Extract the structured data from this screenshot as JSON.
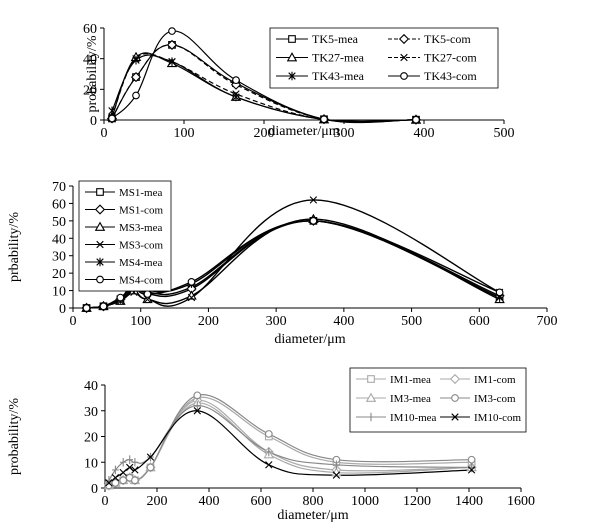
{
  "chart_data": [
    {
      "type": "line",
      "xlabel": "diameter/μm",
      "ylabel": "probability/%",
      "xlim": [
        0,
        500
      ],
      "ylim": [
        0,
        60
      ],
      "xticks": [
        "0",
        "100",
        "200",
        "300",
        "400",
        "500"
      ],
      "yticks": [
        "0",
        "20",
        "40",
        "60"
      ],
      "legend_position": "top-right",
      "legend_columns": 2,
      "series": [
        {
          "name": "TK5-mea",
          "marker": "square",
          "style": "solid",
          "color": "#000000",
          "x": [
            10,
            40,
            85,
            165,
            275,
            390
          ],
          "y": [
            1,
            28,
            49,
            24,
            0.5,
            0.2
          ]
        },
        {
          "name": "TK5-com",
          "marker": "diamond",
          "style": "dashed",
          "color": "#000000",
          "x": [
            10,
            40,
            85,
            165,
            275,
            390
          ],
          "y": [
            1,
            28,
            49,
            23,
            0.5,
            0.2
          ]
        },
        {
          "name": "TK27-mea",
          "marker": "triangle",
          "style": "solid",
          "color": "#000000",
          "x": [
            10,
            40,
            85,
            165,
            275,
            390
          ],
          "y": [
            2,
            41,
            37,
            15,
            0.3,
            0.1
          ]
        },
        {
          "name": "TK27-com",
          "marker": "x",
          "style": "dashed",
          "color": "#000000",
          "x": [
            10,
            40,
            85,
            165,
            275,
            390
          ],
          "y": [
            2,
            40,
            38,
            17,
            0.3,
            0.1
          ]
        },
        {
          "name": "TK43-mea",
          "marker": "asterisk",
          "style": "solid",
          "color": "#000000",
          "x": [
            10,
            40,
            85,
            165,
            275,
            390
          ],
          "y": [
            6,
            39,
            38,
            15,
            0.4,
            0.1
          ]
        },
        {
          "name": "TK43-com",
          "marker": "circle",
          "style": "solid",
          "color": "#000000",
          "x": [
            10,
            40,
            85,
            165,
            275,
            390
          ],
          "y": [
            1,
            16,
            58,
            26,
            0.5,
            0.2
          ]
        }
      ]
    },
    {
      "type": "line",
      "xlabel": "diameter/μm",
      "ylabel": "prbability/%",
      "xlim": [
        0,
        700
      ],
      "ylim": [
        0,
        70
      ],
      "xticks": [
        "0",
        "100",
        "200",
        "300",
        "400",
        "500",
        "600",
        "700"
      ],
      "yticks": [
        "0",
        "10",
        "20",
        "30",
        "40",
        "50",
        "60",
        "70"
      ],
      "legend_position": "top-left",
      "legend_columns": 1,
      "series": [
        {
          "name": "MS1-mea",
          "marker": "square",
          "style": "solid",
          "color": "#000000",
          "x": [
            20,
            45,
            70,
            90,
            110,
            175,
            355,
            630
          ],
          "y": [
            0,
            1,
            5,
            12,
            9,
            12,
            50,
            6
          ]
        },
        {
          "name": "MS1-com",
          "marker": "diamond",
          "style": "solid",
          "color": "#000000",
          "x": [
            20,
            45,
            70,
            90,
            110,
            175,
            355,
            630
          ],
          "y": [
            0,
            1,
            5,
            11,
            8,
            11,
            50,
            7
          ]
        },
        {
          "name": "MS3-mea",
          "marker": "triangle",
          "style": "solid",
          "color": "#000000",
          "x": [
            20,
            45,
            70,
            90,
            110,
            175,
            355,
            630
          ],
          "y": [
            0,
            1,
            4,
            10,
            5,
            7,
            51,
            5
          ]
        },
        {
          "name": "MS3-com",
          "marker": "x",
          "style": "solid",
          "color": "#000000",
          "x": [
            20,
            45,
            70,
            90,
            110,
            175,
            355,
            630
          ],
          "y": [
            0,
            1,
            4,
            9,
            5,
            6,
            62,
            9
          ]
        },
        {
          "name": "MS4-mea",
          "marker": "asterisk",
          "style": "solid",
          "color": "#000000",
          "x": [
            20,
            45,
            70,
            90,
            110,
            175,
            355,
            630
          ],
          "y": [
            0,
            1,
            5,
            15,
            10,
            14,
            50,
            6
          ]
        },
        {
          "name": "MS4-com",
          "marker": "circle",
          "style": "solid",
          "color": "#000000",
          "x": [
            20,
            45,
            70,
            90,
            110,
            175,
            355,
            630
          ],
          "y": [
            0,
            1,
            6,
            12,
            8,
            15,
            50,
            9
          ]
        }
      ]
    },
    {
      "type": "line",
      "xlabel": "diameter/μm",
      "ylabel": "probability/%",
      "xlim": [
        0,
        1600
      ],
      "ylim": [
        0,
        40
      ],
      "xticks": [
        "0",
        "200",
        "400",
        "600",
        "800",
        "1000",
        "1200",
        "1400",
        "1600"
      ],
      "yticks": [
        "0",
        "10",
        "20",
        "30",
        "40"
      ],
      "legend_position": "top-right",
      "legend_columns": 2,
      "series": [
        {
          "name": "IM1-mea",
          "marker": "square",
          "style": "solid",
          "color": "#aaaaaa",
          "x": [
            15,
            40,
            70,
            95,
            115,
            175,
            355,
            630,
            890,
            1410
          ],
          "y": [
            1,
            2,
            3,
            4,
            3,
            8,
            35,
            20,
            10,
            10
          ]
        },
        {
          "name": "IM1-com",
          "marker": "diamond",
          "style": "solid",
          "color": "#aaaaaa",
          "x": [
            15,
            40,
            70,
            95,
            115,
            175,
            355,
            630,
            890,
            1410
          ],
          "y": [
            1,
            2,
            3,
            4,
            3,
            8,
            34,
            14,
            7,
            8
          ]
        },
        {
          "name": "IM3-mea",
          "marker": "triangle",
          "style": "solid",
          "color": "#aaaaaa",
          "x": [
            15,
            40,
            70,
            95,
            115,
            175,
            355,
            630,
            890,
            1410
          ],
          "y": [
            1,
            2,
            3,
            4,
            3,
            8,
            33,
            13,
            6,
            8
          ]
        },
        {
          "name": "IM3-com",
          "marker": "circle",
          "style": "solid",
          "color": "#888888",
          "x": [
            15,
            40,
            70,
            95,
            115,
            175,
            355,
            630,
            890,
            1410
          ],
          "y": [
            1,
            2,
            3,
            4,
            3,
            8,
            36,
            21,
            11,
            11
          ]
        },
        {
          "name": "IM10-mea",
          "marker": "plus",
          "style": "solid",
          "color": "#888888",
          "x": [
            15,
            40,
            70,
            95,
            115,
            175,
            355,
            630,
            890,
            1410
          ],
          "y": [
            3,
            7,
            10,
            11,
            10,
            12,
            32,
            14,
            9,
            8
          ]
        },
        {
          "name": "IM10-com",
          "marker": "x",
          "style": "solid",
          "color": "#000000",
          "x": [
            15,
            40,
            70,
            95,
            115,
            175,
            355,
            630,
            890,
            1410
          ],
          "y": [
            2,
            4,
            6,
            8,
            7,
            12,
            30,
            9,
            5,
            7
          ]
        }
      ]
    }
  ]
}
